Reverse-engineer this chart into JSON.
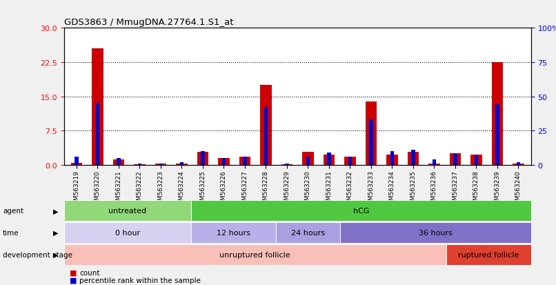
{
  "title": "GDS3863 / MmugDNA.27764.1.S1_at",
  "samples": [
    "GSM563219",
    "GSM563220",
    "GSM563221",
    "GSM563222",
    "GSM563223",
    "GSM563224",
    "GSM563225",
    "GSM563226",
    "GSM563227",
    "GSM563228",
    "GSM563229",
    "GSM563230",
    "GSM563231",
    "GSM563232",
    "GSM563233",
    "GSM563234",
    "GSM563235",
    "GSM563236",
    "GSM563237",
    "GSM563238",
    "GSM563239",
    "GSM563240"
  ],
  "count": [
    0.4,
    25.5,
    1.1,
    0.1,
    0.2,
    0.2,
    2.8,
    1.5,
    1.8,
    17.5,
    0.1,
    2.8,
    2.2,
    1.8,
    13.8,
    2.2,
    2.9,
    0.3,
    2.5,
    2.2,
    22.5,
    0.2
  ],
  "percentile": [
    6,
    45,
    5,
    1,
    1,
    2,
    10,
    5,
    6,
    42,
    1,
    6,
    9,
    6,
    33,
    10,
    11,
    4,
    8,
    7,
    44,
    2
  ],
  "ylim_left": [
    0,
    30
  ],
  "yticks_left": [
    0,
    7.5,
    15,
    22.5,
    30
  ],
  "ylim_right": [
    0,
    100
  ],
  "yticks_right": [
    0,
    25,
    50,
    75,
    100
  ],
  "agent_groups": [
    {
      "label": "untreated",
      "start": 0,
      "end": 5,
      "color": "#90d878"
    },
    {
      "label": "hCG",
      "start": 6,
      "end": 21,
      "color": "#50c840"
    }
  ],
  "time_groups": [
    {
      "label": "0 hour",
      "start": 0,
      "end": 5,
      "color": "#d8d0f0"
    },
    {
      "label": "12 hours",
      "start": 6,
      "end": 9,
      "color": "#b8b0e8"
    },
    {
      "label": "24 hours",
      "start": 10,
      "end": 12,
      "color": "#a8a0e0"
    },
    {
      "label": "36 hours",
      "start": 13,
      "end": 21,
      "color": "#8070c8"
    }
  ],
  "stage_groups": [
    {
      "label": "unruptured follicle",
      "start": 0,
      "end": 17,
      "color": "#f8c0b8"
    },
    {
      "label": "ruptured follicle",
      "start": 18,
      "end": 21,
      "color": "#e04030"
    }
  ],
  "bar_color_red": "#cc0000",
  "bar_color_blue": "#0000cc",
  "bg_color": "#f0f0f0",
  "plot_bg": "#ffffff"
}
